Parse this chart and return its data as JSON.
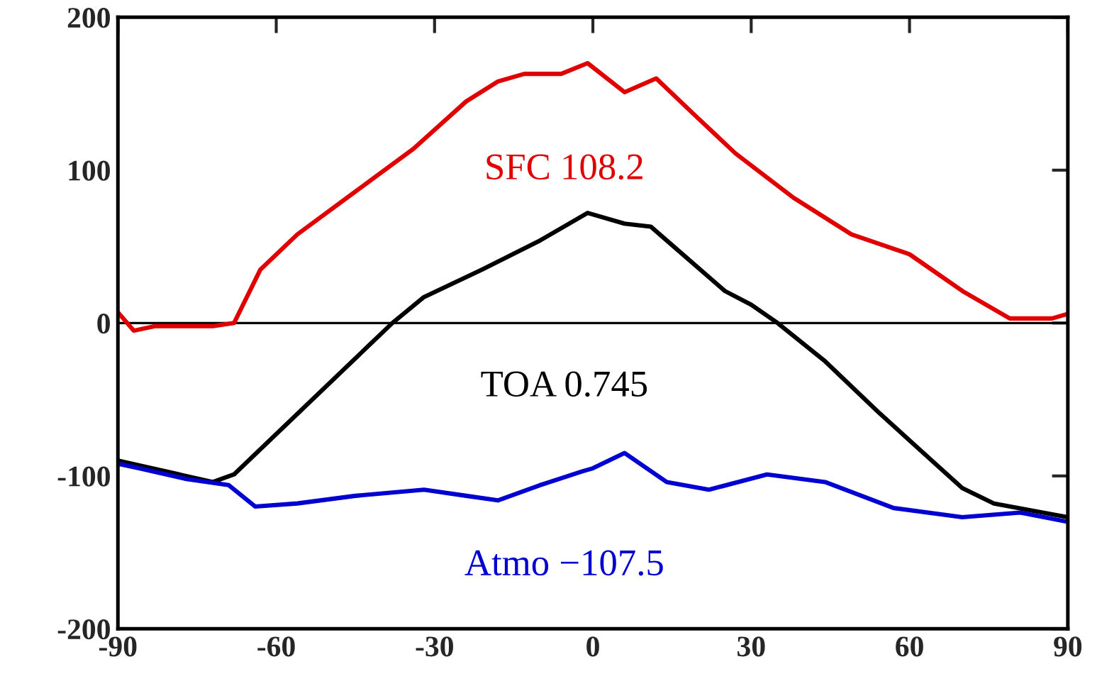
{
  "chart_data": {
    "type": "line",
    "xlim": [
      -90,
      90
    ],
    "ylim": [
      -200,
      200
    ],
    "xticks": [
      -90,
      -60,
      -30,
      0,
      30,
      60,
      90
    ],
    "yticks": [
      -200,
      -100,
      0,
      100,
      200
    ],
    "grid": false,
    "legend": false,
    "ref_lines": [
      {
        "axis": "y",
        "value": 0,
        "color": "#000000",
        "line_style": "solid"
      }
    ],
    "series": [
      {
        "name": "SFC 108.2",
        "color": "#e00000",
        "x": [
          -90,
          -87,
          -83,
          -72,
          -68,
          -65,
          -63,
          -56,
          -45,
          -34,
          -24,
          -18,
          -13,
          -6,
          -1,
          6,
          12,
          19,
          27,
          38,
          49,
          60,
          70,
          79,
          87,
          90
        ],
        "values": [
          7,
          -5,
          -2,
          -2,
          0,
          21,
          35,
          58,
          86,
          114,
          145,
          158,
          163,
          163,
          170,
          151,
          160,
          137,
          111,
          82,
          58,
          45,
          21,
          3,
          3,
          6
        ]
      },
      {
        "name": "TOA 0.745",
        "color": "#000000",
        "x": [
          -90,
          -72,
          -68,
          -38,
          -32,
          -21,
          -10,
          -1,
          6,
          11,
          17,
          25,
          30,
          35,
          44,
          54,
          62,
          70,
          76,
          90
        ],
        "values": [
          -90,
          -104,
          -99,
          0,
          17,
          35,
          54,
          72,
          65,
          63,
          45,
          21,
          12,
          0,
          -25,
          -58,
          -83,
          -108,
          -118,
          -127
        ]
      },
      {
        "name": "Atmo −107.5",
        "color": "#0000d0",
        "x": [
          -90,
          -86,
          -77,
          -69,
          -64,
          -56,
          -45,
          -32,
          -24,
          -18,
          -10,
          -2,
          0,
          6,
          14,
          22,
          33,
          44,
          57,
          70,
          81,
          90
        ],
        "values": [
          -92,
          -95,
          -102,
          -106,
          -120,
          -118,
          -113,
          -109,
          -113,
          -116,
          -106,
          -97,
          -95,
          -85,
          -104,
          -109,
          -99,
          -104,
          -121,
          -127,
          -124,
          -130
        ]
      }
    ]
  }
}
